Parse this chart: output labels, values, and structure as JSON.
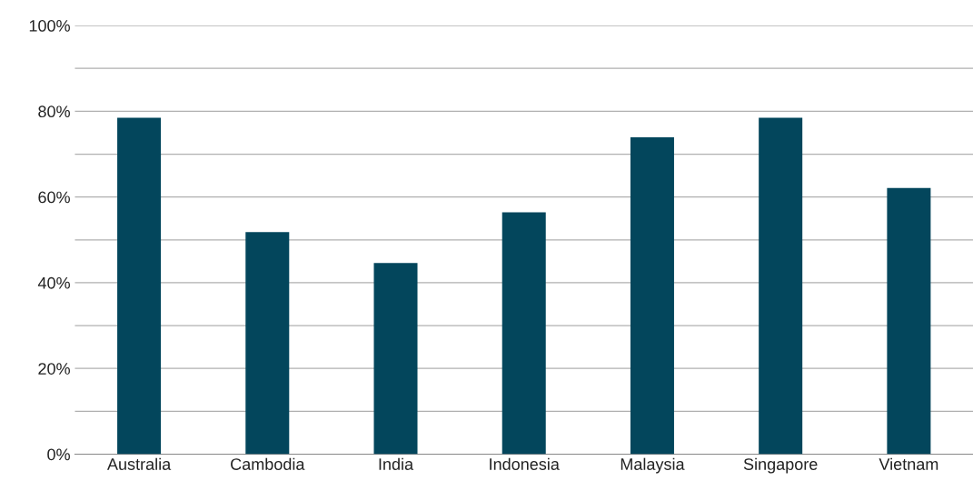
{
  "chart_data": {
    "type": "bar",
    "categories": [
      "Australia",
      "Cambodia",
      "India",
      "Indonesia",
      "Malaysia",
      "Singapore",
      "Vietnam"
    ],
    "values": [
      78.5,
      51.8,
      44.6,
      56.4,
      73.9,
      78.5,
      62.1
    ],
    "color": "#03465c",
    "ylim": [
      0,
      100
    ],
    "yticks": [
      {
        "value": 0,
        "label": "0%"
      },
      {
        "value": 10,
        "label": null
      },
      {
        "value": 20,
        "label": "20%"
      },
      {
        "value": 30,
        "label": null
      },
      {
        "value": 40,
        "label": "40%"
      },
      {
        "value": 50,
        "label": null
      },
      {
        "value": 60,
        "label": "60%"
      },
      {
        "value": 70,
        "label": null
      },
      {
        "value": 80,
        "label": "80%"
      },
      {
        "value": 90,
        "label": null
      },
      {
        "value": 100,
        "label": "100%"
      }
    ],
    "grid": "y"
  }
}
